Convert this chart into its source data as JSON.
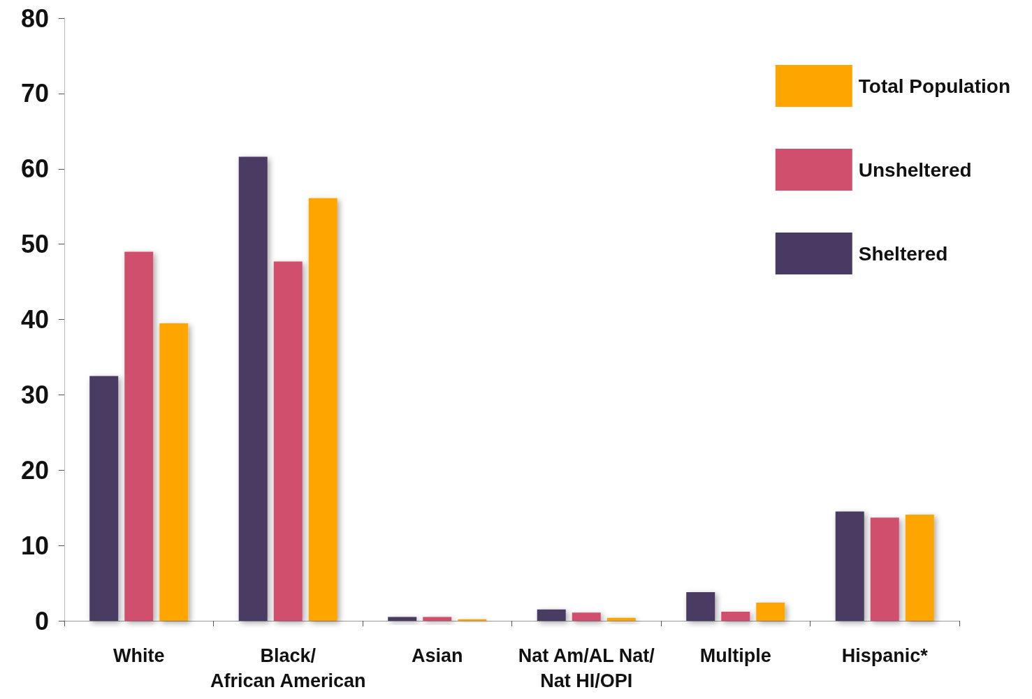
{
  "chart_data": {
    "type": "bar",
    "categories": [
      "White",
      "Black/\nAfrican American",
      "Asian",
      "Nat Am/AL Nat/\nNat HI/OPI",
      "Multiple",
      "Hispanic*"
    ],
    "series": [
      {
        "name": "Sheltered",
        "color": "#483a62",
        "values": [
          32.5,
          61.6,
          0.5,
          1.5,
          3.8,
          14.5
        ]
      },
      {
        "name": "Unsheltered",
        "color": "#cf4f6d",
        "values": [
          49.0,
          47.7,
          0.5,
          1.1,
          1.2,
          13.7
        ]
      },
      {
        "name": "Total Population",
        "color": "#ffa500",
        "values": [
          39.5,
          56.1,
          0.2,
          0.4,
          2.4,
          14.1
        ]
      }
    ],
    "ylim": [
      0,
      80
    ],
    "yticks": [
      0,
      10,
      20,
      30,
      40,
      50,
      60,
      70,
      80
    ],
    "grid": false,
    "legend": "top right"
  }
}
